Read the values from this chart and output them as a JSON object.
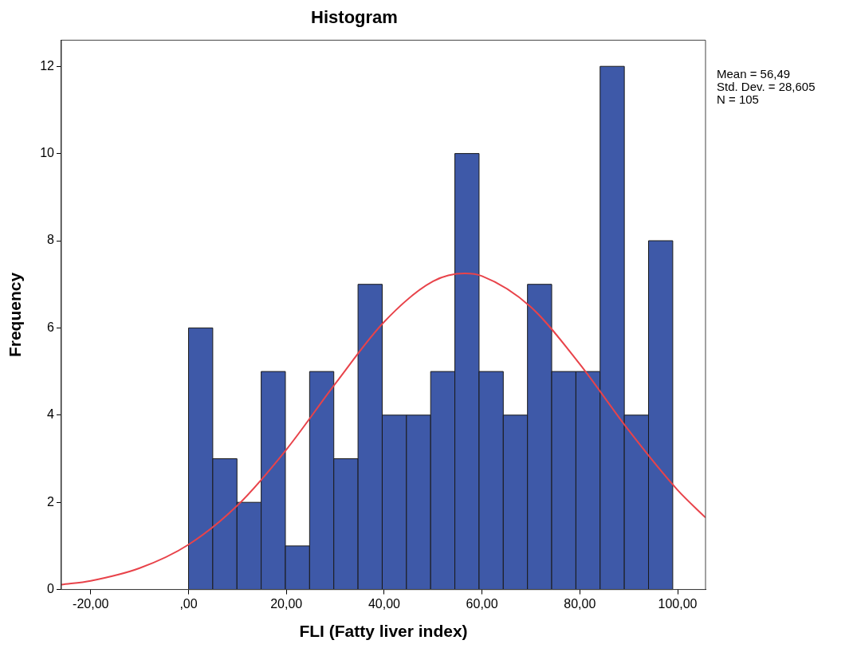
{
  "chart_data": {
    "type": "histogram",
    "title": "Histogram",
    "xlabel": "FLI (Fatty liver index)",
    "ylabel": "Frequency",
    "bins": [
      0,
      4.95,
      9.9,
      14.85,
      19.8,
      24.75,
      29.7,
      34.65,
      39.6,
      44.55,
      49.5,
      54.45,
      59.4,
      64.35,
      69.3,
      74.25,
      79.2,
      84.15,
      89.1,
      94.05,
      99
    ],
    "values": [
      6,
      3,
      2,
      5,
      1,
      5,
      3,
      7,
      4,
      4,
      5,
      10,
      5,
      4,
      7,
      5,
      5,
      12,
      4,
      8
    ],
    "color": "#3e59a8",
    "series": [
      {
        "type": "line",
        "color": "#e8434a",
        "x": [
          -26,
          -20,
          -10,
          0,
          10,
          20,
          30,
          40,
          50,
          56.49,
          60,
          70,
          80,
          90,
          100,
          105.7
        ],
        "values": [
          0.11,
          0.2,
          0.49,
          1.03,
          1.93,
          3.21,
          4.72,
          6.14,
          7.07,
          7.25,
          7.19,
          6.48,
          5.17,
          3.65,
          2.28,
          1.65
        ]
      }
    ],
    "xlim": [
      -26,
      105.7
    ],
    "xticks": [
      {
        "value": -20,
        "label": "-20,00"
      },
      {
        "value": 0,
        "label": ",00"
      },
      {
        "value": 20,
        "label": "20,00"
      },
      {
        "value": 40,
        "label": "40,00"
      },
      {
        "value": 60,
        "label": "60,00"
      },
      {
        "value": 80,
        "label": "80,00"
      },
      {
        "value": 100,
        "label": "100,00"
      }
    ],
    "ylim": [
      0,
      12.6
    ],
    "yticks": [
      0,
      2,
      4,
      6,
      8,
      10,
      12
    ],
    "annotations": [
      "Mean = 56,49",
      "Std. Dev. = 28,605",
      "N = 105"
    ],
    "grid": false,
    "legend": false,
    "marker": "none"
  }
}
